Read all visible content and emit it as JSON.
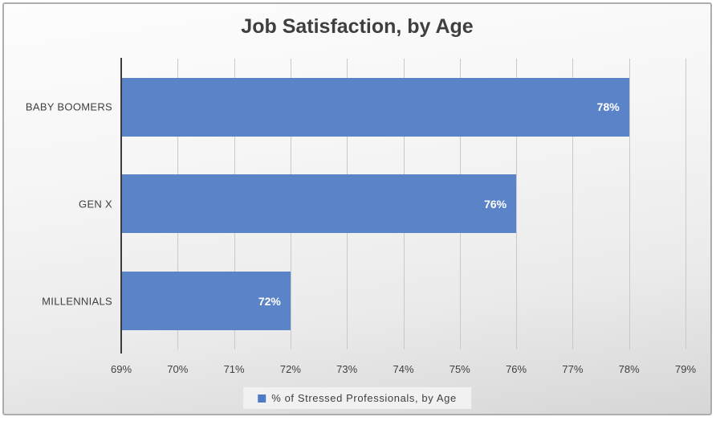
{
  "colors": {
    "bar": "#5B84C8",
    "legend_swatch": "#4E7AC7",
    "axis_line": "#3B3B3B",
    "gridline": "#C9C9C9",
    "text": "#404040",
    "title_text": "#3F3F3F",
    "data_label_text": "#FFFFFF",
    "legend_background": "#F1F1F1",
    "frame_border": "#ADADAD"
  },
  "chart_data": {
    "type": "bar",
    "orientation": "horizontal",
    "title": "Job Satisfaction, by Age",
    "categories": [
      "BABY BOOMERS",
      "GEN X",
      "MILLENNIALS"
    ],
    "values": [
      78,
      76,
      72
    ],
    "value_labels": [
      "78%",
      "76%",
      "72%"
    ],
    "series": [
      {
        "name": "% of Stressed Professionals, by Age",
        "values": [
          78,
          76,
          72
        ]
      }
    ],
    "legend": {
      "label": "% of Stressed Professionals, by Age",
      "position": "bottom"
    },
    "x_axis": {
      "min": 69,
      "max": 79,
      "tick_step": 1,
      "tick_labels": [
        "69%",
        "70%",
        "71%",
        "72%",
        "73%",
        "74%",
        "75%",
        "76%",
        "77%",
        "78%",
        "79%"
      ]
    },
    "grid": "vertical",
    "xlabel": "",
    "ylabel": ""
  }
}
